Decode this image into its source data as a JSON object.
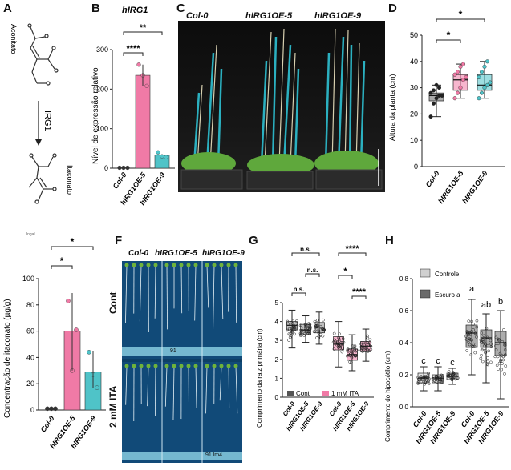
{
  "panels": {
    "A": {
      "label": "A",
      "reactant": "Aconitato",
      "enzyme": "IRG1",
      "product": "Itaconato"
    },
    "B": {
      "label": "B",
      "title": "hIRG1",
      "ylabel": "Nível de expressão relativo",
      "categories": [
        "Col-0",
        "hIRG1OE-5",
        "hIRG1OE-9"
      ],
      "sig": [
        "****",
        "**"
      ]
    },
    "C": {
      "label": "C",
      "genotypes": [
        "Col-0",
        "hIRG1OE-5",
        "hIRG1OE-9"
      ]
    },
    "D": {
      "label": "D",
      "ylabel": "Altura da planta (cm)",
      "categories": [
        "Col-0",
        "hIRG1OE-5",
        "hIRG1OE-9"
      ],
      "sig": [
        "*",
        "*"
      ]
    },
    "E": {
      "ylabel": "Concentração de itaconato (µg/g)",
      "small_text": "lngal",
      "categories": [
        "Col-0",
        "hIRG1OE-5",
        "hIRG1OE-9"
      ],
      "sig": [
        "*",
        "*"
      ]
    },
    "F": {
      "label": "F",
      "genotypes": [
        "Col-0",
        "hIRG1OE-5",
        "hIRG1OE-9"
      ],
      "conditions": [
        "Cont",
        "2 mM ITA"
      ],
      "plate_marks": [
        "91",
        "91 lm4"
      ]
    },
    "G": {
      "label": "G",
      "ylabel": "Comprimento da raiz primária (cm)",
      "categories": [
        "Col-0",
        "hIRG1OE-5",
        "hIRG1OE-9",
        "Col-0",
        "hIRG1OE-5",
        "hIRG1OE-9"
      ],
      "sig": [
        "n.s.",
        "n.s.",
        "n.s.",
        "*",
        "****",
        "****"
      ],
      "legend": [
        "Cont",
        "1 mM ITA"
      ]
    },
    "H": {
      "label": "H",
      "ylabel": "Comprimento do hipocótilo (cm)",
      "categories": [
        "Col-0",
        "hIRG1OE-5",
        "hIRG1OE-9",
        "Col-0",
        "hIRG1OE-5",
        "hIRG1OE-9"
      ],
      "letters": [
        "c",
        "c",
        "c",
        "a",
        "ab",
        "b"
      ],
      "legend": [
        "Controle",
        "Escuro a"
      ]
    }
  },
  "chart_data": [
    {
      "type": "bar",
      "panel": "B",
      "title": "hIRG1",
      "ylabel": "Nível de expressão relativo",
      "categories": [
        "Col-0",
        "hIRG1OE-5",
        "hIRG1OE-9"
      ],
      "values": [
        1,
        235,
        33
      ],
      "points": [
        [
          1,
          1,
          1
        ],
        [
          262,
          235,
          208
        ],
        [
          40,
          30,
          28
        ]
      ],
      "ylim": [
        0,
        300
      ],
      "yticks": [
        0,
        100,
        200,
        300
      ],
      "colors": [
        "#333333",
        "#f07aa6",
        "#4fc3c8"
      ]
    },
    {
      "type": "box",
      "panel": "D",
      "ylabel": "Altura da planta (cm)",
      "categories": [
        "Col-0",
        "hIRG1OE-5",
        "hIRG1OE-9"
      ],
      "stats": [
        [
          19,
          25,
          27,
          28,
          31
        ],
        [
          26,
          29,
          33,
          35,
          39
        ],
        [
          26,
          29,
          31,
          35,
          40
        ]
      ],
      "points": [
        [
          19,
          24,
          26,
          27,
          27,
          28,
          29,
          31,
          30
        ],
        [
          26,
          28,
          30,
          33,
          34,
          35,
          36,
          38,
          39
        ],
        [
          26,
          28,
          30,
          31,
          32,
          34,
          36,
          38,
          40
        ]
      ],
      "ylim": [
        0,
        50
      ],
      "yticks": [
        0,
        10,
        20,
        30,
        40,
        50
      ],
      "colors": [
        "#666666",
        "#f07aa6",
        "#4fc3c8"
      ]
    },
    {
      "type": "bar",
      "panel": "E",
      "ylabel": "Concentração de itaconato (µg/g)",
      "categories": [
        "Col-0",
        "hIRG1OE-5",
        "hIRG1OE-9"
      ],
      "values": [
        1,
        60,
        29
      ],
      "points": [
        [
          1,
          1,
          1
        ],
        [
          83,
          30,
          61
        ],
        [
          44,
          27,
          17
        ]
      ],
      "ylim": [
        0,
        100
      ],
      "yticks": [
        0,
        20,
        40,
        60,
        80,
        100
      ],
      "colors": [
        "#333333",
        "#f07aa6",
        "#4fc3c8"
      ]
    },
    {
      "type": "box",
      "panel": "G",
      "ylabel": "Comprimento da raiz primária (cm)",
      "categories": [
        "Col-0",
        "hIRG1OE-5",
        "hIRG1OE-9",
        "Col-0",
        "hIRG1OE-5",
        "hIRG1OE-9"
      ],
      "stats": [
        [
          2.6,
          3.55,
          3.8,
          4.0,
          4.6
        ],
        [
          2.9,
          3.3,
          3.55,
          3.85,
          4.3
        ],
        [
          2.8,
          3.4,
          3.7,
          3.95,
          4.5
        ],
        [
          1.6,
          2.5,
          2.8,
          3.2,
          4.0
        ],
        [
          1.4,
          1.95,
          2.25,
          2.55,
          3.3
        ],
        [
          1.9,
          2.4,
          2.7,
          2.95,
          3.6
        ]
      ],
      "ylim": [
        0,
        5
      ],
      "yticks": [
        0,
        1,
        2,
        3,
        4,
        5
      ],
      "colors": [
        "#555555",
        "#555555",
        "#555555",
        "#f07aa6",
        "#f07aa6",
        "#f07aa6"
      ]
    },
    {
      "type": "box",
      "panel": "H",
      "ylabel": "Comprimento do hipocótilo (cm)",
      "categories": [
        "Col-0",
        "hIRG1OE-5",
        "hIRG1OE-9",
        "Col-0",
        "hIRG1OE-5",
        "hIRG1OE-9"
      ],
      "stats": [
        [
          0.1,
          0.15,
          0.18,
          0.21,
          0.25
        ],
        [
          0.1,
          0.15,
          0.18,
          0.2,
          0.25
        ],
        [
          0.14,
          0.17,
          0.19,
          0.21,
          0.24
        ],
        [
          0.2,
          0.37,
          0.46,
          0.51,
          0.67
        ],
        [
          0.15,
          0.37,
          0.43,
          0.48,
          0.58
        ],
        [
          0.05,
          0.32,
          0.4,
          0.47,
          0.6
        ]
      ],
      "ylim": [
        0,
        0.8
      ],
      "yticks": [
        0.0,
        0.2,
        0.4,
        0.6,
        0.8
      ],
      "colors": [
        "#d0d0d0",
        "#d0d0d0",
        "#d0d0d0",
        "#6a6a6a",
        "#6a6a6a",
        "#6a6a6a"
      ]
    }
  ]
}
